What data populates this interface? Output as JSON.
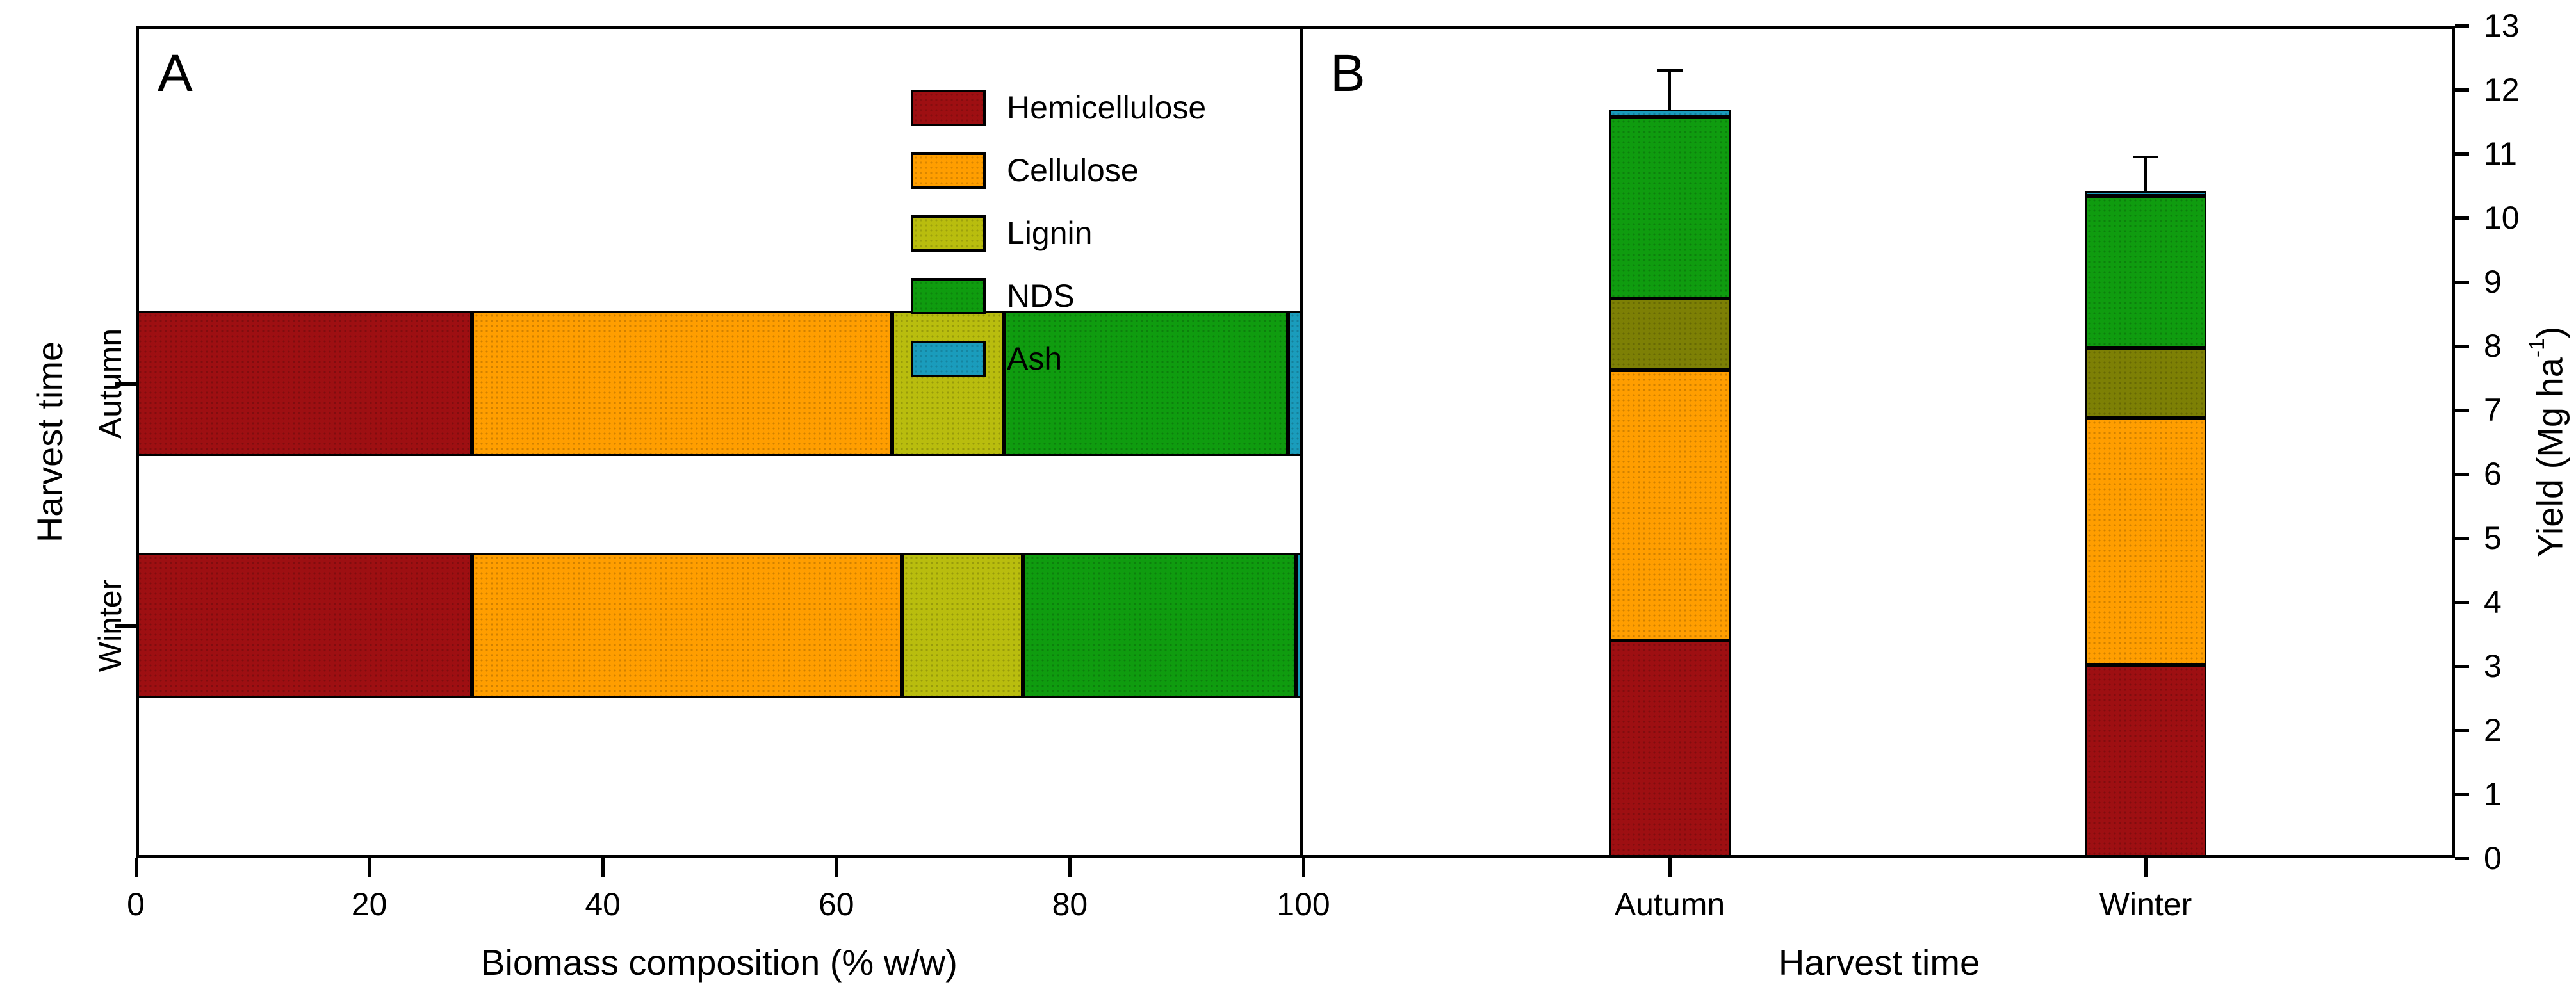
{
  "panelB_ylabel_parts": {
    "pre": "Yield (Mg ha",
    "sup": "-1",
    "post": ")"
  },
  "chart_data": [
    {
      "id": "A",
      "panel_label": "A",
      "type": "bar",
      "orientation": "horizontal",
      "stacked": true,
      "categories": [
        "Autumn",
        "Winter"
      ],
      "series": [
        {
          "name": "Hemicellulose",
          "color": "#9e0f12",
          "values": [
            28.8,
            28.8
          ]
        },
        {
          "name": "Cellulose",
          "color": "#ff9e00",
          "values": [
            36.0,
            36.8
          ]
        },
        {
          "name": "Lignin",
          "color": "#b9bd0e",
          "values": [
            9.6,
            10.4
          ]
        },
        {
          "name": "NDS",
          "color": "#0f9c0f",
          "values": [
            24.3,
            23.4
          ]
        },
        {
          "name": "Ash",
          "color": "#1a9cbc",
          "values": [
            1.3,
            0.6
          ]
        }
      ],
      "xlabel": "Biomass composition (% w/w)",
      "ylabel": "Harvest time",
      "xticks": [
        0,
        20,
        40,
        60,
        80,
        100
      ],
      "xlim": [
        0,
        100
      ],
      "grid": false,
      "legend_position": "inside-top-right",
      "legend_items": [
        "Hemicellulose",
        "Cellulose",
        "Lignin",
        "NDS",
        "Ash"
      ]
    },
    {
      "id": "B",
      "panel_label": "B",
      "type": "bar",
      "orientation": "vertical",
      "stacked": true,
      "categories": [
        "Autumn",
        "Winter"
      ],
      "series": [
        {
          "name": "Hemicellulose",
          "color": "#9e0f12",
          "values": [
            3.4,
            3.02
          ]
        },
        {
          "name": "Cellulose",
          "color": "#ff9e00",
          "values": [
            4.22,
            3.85
          ]
        },
        {
          "name": "Lignin",
          "color": "#7d8005",
          "values": [
            1.12,
            1.1
          ]
        },
        {
          "name": "NDS",
          "color": "#0f9c0f",
          "values": [
            2.83,
            2.37
          ]
        },
        {
          "name": "Ash",
          "color": "#1a9cbc",
          "values": [
            0.12,
            0.08
          ]
        }
      ],
      "totals": [
        11.69,
        10.42
      ],
      "error_bar_tops": [
        12.3,
        10.95
      ],
      "xlabel": "Harvest time",
      "ylabel": "Yield (Mg ha⁻¹)",
      "yticks": [
        0,
        1,
        2,
        3,
        4,
        5,
        6,
        7,
        8,
        9,
        10,
        11,
        12,
        13
      ],
      "ylim": [
        0,
        13
      ],
      "grid": false,
      "legend_position": "none"
    }
  ]
}
